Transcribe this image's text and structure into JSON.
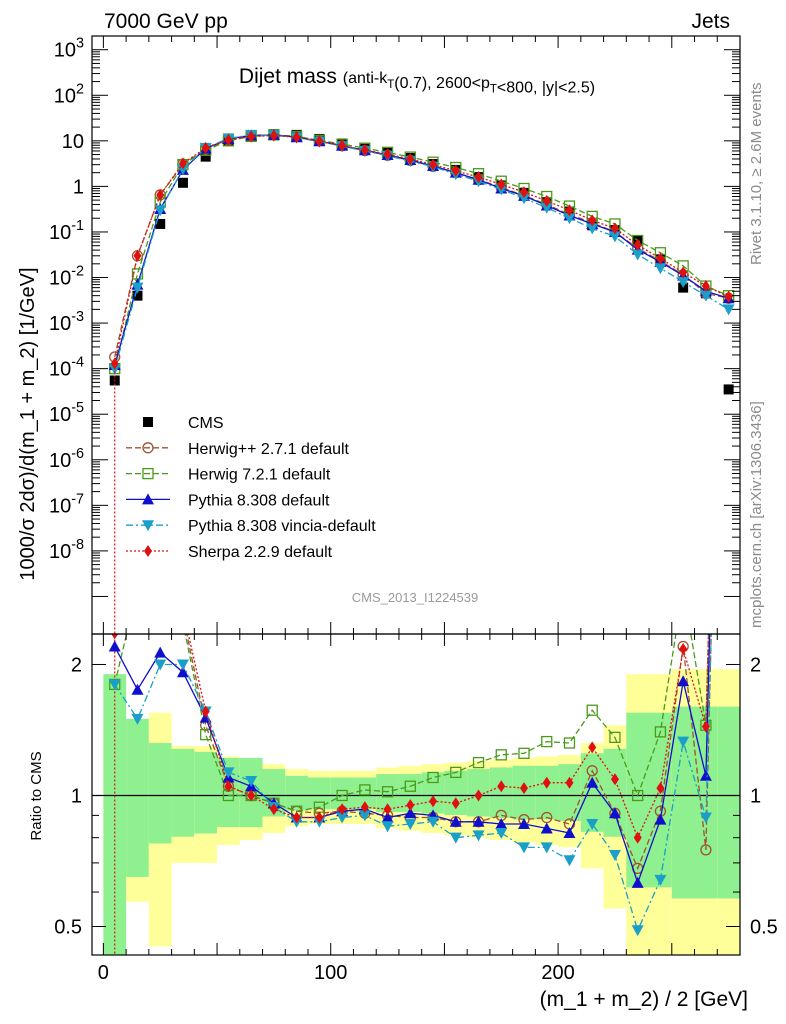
{
  "header": {
    "left": "7000 GeV pp",
    "right": "Jets"
  },
  "side": {
    "rivet": "Rivet 3.1.10, ≥ 2.6M events",
    "mcplots": "mcplots.cern.ch [arXiv:1306.3436]"
  },
  "title": {
    "main": "Dijet mass",
    "sub": "(anti-k_T(0.7), 2600<p_T<800, |y|<2.5)"
  },
  "analysis_id": "CMS_2013_I1224539",
  "colors": {
    "CMS": "#000000",
    "Herwig++ 2.7.1 default": "#a0522d",
    "Herwig 7.2.1 default": "#4a9a1a",
    "Pythia 8.308 default": "#1010cc",
    "Pythia 8.308 vincia-default": "#1a9fc8",
    "Sherpa 2.2.9 default": "#e01010",
    "band_green": "#8ef08e",
    "band_yellow": "#ffff99"
  },
  "chart_data": {
    "type": "line",
    "xlabel": "(m_1 + m_2) / 2 [GeV]",
    "ylabel": "1000/σ 2dσ)/d(m_1 + m_2) [1/GeV]",
    "ratio_ylabel": "Ratio to CMS",
    "xlim": [
      -5,
      280
    ],
    "ylim": [
      1.5e-10,
      2000
    ],
    "yscale": "log",
    "ratio_ylim": [
      0.43,
      2.35
    ],
    "ratio_yscale": "log",
    "x_ticks": [
      0,
      100,
      200
    ],
    "y_tick_labels": [
      "10^{-8}",
      "10^{-7}",
      "10^{-6}",
      "10^{-5}",
      "10^{-4}",
      "10^{-3}",
      "10^{-2}",
      "10^{-1}",
      "1",
      "10",
      "10^{2}",
      "10^{3}"
    ],
    "ratio_tick_labels": [
      "0.5",
      "1",
      "2"
    ],
    "legend_position": "center-left",
    "x": [
      5,
      15,
      25,
      35,
      45,
      55,
      65,
      75,
      85,
      95,
      105,
      115,
      125,
      135,
      145,
      155,
      165,
      175,
      185,
      195,
      205,
      215,
      225,
      235,
      245,
      255,
      265,
      275
    ],
    "series": [
      {
        "name": "CMS",
        "style": "data",
        "values": [
          5.5e-05,
          0.004,
          0.15,
          1.2,
          4.5,
          10,
          12.5,
          14,
          13.5,
          11,
          8.5,
          6.7,
          5.5,
          4.2,
          3.1,
          2.3,
          1.6,
          1.05,
          0.72,
          0.45,
          0.28,
          0.14,
          0.11,
          0.065,
          0.025,
          0.006,
          0.0045,
          3.5e-05
        ]
      },
      {
        "name": "Herwig++ 2.7.1 default",
        "style": "dashed",
        "values": [
          0.00018,
          0.03,
          0.65,
          3.1,
          6.5,
          10.5,
          12.5,
          13.5,
          12.5,
          10,
          7.8,
          6.1,
          4.8,
          3.7,
          2.75,
          2.0,
          1.4,
          0.95,
          0.63,
          0.4,
          0.24,
          0.16,
          0.1,
          0.044,
          0.023,
          0.0115,
          0.0045,
          0.0035
        ]
      },
      {
        "name": "Herwig 7.2.1 default",
        "style": "dashed",
        "values": [
          0.0001,
          0.012,
          0.45,
          3.0,
          6.2,
          10,
          12.5,
          13.5,
          12.5,
          10.3,
          8.5,
          6.9,
          5.6,
          4.4,
          3.4,
          2.6,
          1.9,
          1.3,
          0.9,
          0.6,
          0.37,
          0.22,
          0.15,
          0.065,
          0.035,
          0.018,
          0.0065,
          0.004
        ]
      },
      {
        "name": "Pythia 8.308 default",
        "style": "solid",
        "values": [
          0.00012,
          0.007,
          0.32,
          2.3,
          6.8,
          11,
          13.2,
          13.5,
          12,
          9.8,
          7.8,
          6.2,
          4.9,
          3.8,
          2.8,
          2.0,
          1.4,
          0.9,
          0.62,
          0.38,
          0.23,
          0.15,
          0.1,
          0.041,
          0.022,
          0.011,
          0.005,
          0.0035
        ]
      },
      {
        "name": "Pythia 8.308 vincia-default",
        "style": "dashdot",
        "values": [
          0.0001,
          0.006,
          0.3,
          2.4,
          7,
          11.3,
          13.5,
          13.2,
          11.8,
          9.6,
          7.6,
          6.0,
          4.7,
          3.6,
          2.7,
          1.85,
          1.3,
          0.86,
          0.55,
          0.34,
          0.2,
          0.12,
          0.08,
          0.032,
          0.016,
          0.008,
          0.004,
          0.002
        ]
      },
      {
        "name": "Sherpa 2.2.9 default",
        "style": "dotted",
        "values": [
          0.00013,
          0.03,
          0.65,
          3.2,
          7,
          10.5,
          12.5,
          13,
          12,
          9.8,
          7.9,
          6.3,
          5.1,
          4.0,
          3.0,
          2.2,
          1.6,
          1.1,
          0.75,
          0.48,
          0.3,
          0.18,
          0.12,
          0.052,
          0.026,
          0.013,
          0.0065,
          0.0038
        ]
      }
    ],
    "ratio_series": [
      {
        "name": "Herwig++ 2.7.1 default",
        "values": [
          3.3,
          7.5,
          4.3,
          2.6,
          1.45,
          1.05,
          1.0,
          0.96,
          0.92,
          0.91,
          0.92,
          0.91,
          0.9,
          0.89,
          0.89,
          0.87,
          0.87,
          0.9,
          0.88,
          0.89,
          0.86,
          1.14,
          0.91,
          0.68,
          0.92,
          2.2,
          0.75,
          100
        ]
      },
      {
        "name": "Herwig 7.2.1 default",
        "values": [
          1.8,
          3.0,
          3.0,
          2.5,
          1.38,
          1.0,
          1.0,
          0.96,
          0.92,
          0.94,
          1.0,
          1.03,
          1.02,
          1.05,
          1.1,
          1.13,
          1.19,
          1.24,
          1.25,
          1.33,
          1.32,
          1.57,
          1.36,
          1.0,
          1.4,
          3.0,
          1.45,
          110
        ]
      },
      {
        "name": "Pythia 8.308 default",
        "values": [
          2.2,
          1.75,
          2.13,
          1.92,
          1.51,
          1.1,
          1.05,
          0.96,
          0.89,
          0.89,
          0.92,
          0.93,
          0.89,
          0.91,
          0.9,
          0.87,
          0.87,
          0.86,
          0.86,
          0.84,
          0.82,
          1.07,
          0.91,
          0.63,
          0.88,
          1.83,
          1.11,
          100
        ]
      },
      {
        "name": "Pythia 8.308 vincia-default",
        "values": [
          1.8,
          1.5,
          2.0,
          2.0,
          1.56,
          1.13,
          1.08,
          0.94,
          0.87,
          0.87,
          0.89,
          0.9,
          0.85,
          0.86,
          0.87,
          0.8,
          0.81,
          0.82,
          0.76,
          0.76,
          0.71,
          0.86,
          0.73,
          0.49,
          0.64,
          1.33,
          0.89,
          57
        ]
      },
      {
        "name": "Sherpa 2.2.9 default",
        "values": [
          2.36,
          7.5,
          4.3,
          2.67,
          1.56,
          1.05,
          1.0,
          0.93,
          0.89,
          0.89,
          0.93,
          0.94,
          0.93,
          0.95,
          0.97,
          0.96,
          1.0,
          1.05,
          1.04,
          1.07,
          1.07,
          1.29,
          1.09,
          0.8,
          1.04,
          2.17,
          1.44,
          108
        ]
      }
    ]
  }
}
